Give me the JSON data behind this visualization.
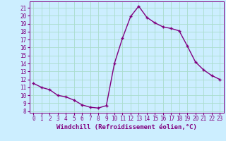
{
  "x": [
    0,
    1,
    2,
    3,
    4,
    5,
    6,
    7,
    8,
    9,
    10,
    11,
    12,
    13,
    14,
    15,
    16,
    17,
    18,
    19,
    20,
    21,
    22,
    23
  ],
  "y": [
    11.5,
    11.0,
    10.7,
    10.0,
    9.8,
    9.4,
    8.8,
    8.5,
    8.4,
    8.7,
    14.0,
    17.2,
    19.9,
    21.2,
    19.8,
    19.1,
    18.6,
    18.4,
    18.1,
    16.2,
    14.2,
    13.2,
    12.5,
    12.0
  ],
  "line_color": "#800080",
  "marker": "P",
  "marker_size": 3,
  "linewidth": 1.0,
  "xlabel": "Windchill (Refroidissement éolien,°C)",
  "xlim": [
    -0.5,
    23.5
  ],
  "ylim": [
    7.8,
    21.8
  ],
  "yticks": [
    8,
    9,
    10,
    11,
    12,
    13,
    14,
    15,
    16,
    17,
    18,
    19,
    20,
    21
  ],
  "xticks": [
    0,
    1,
    2,
    3,
    4,
    5,
    6,
    7,
    8,
    9,
    10,
    11,
    12,
    13,
    14,
    15,
    16,
    17,
    18,
    19,
    20,
    21,
    22,
    23
  ],
  "background_color": "#cceeff",
  "grid_color": "#aaddcc",
  "tick_label_color": "#800080",
  "xlabel_color": "#800080",
  "xlabel_fontsize": 6.5,
  "tick_fontsize": 5.5
}
